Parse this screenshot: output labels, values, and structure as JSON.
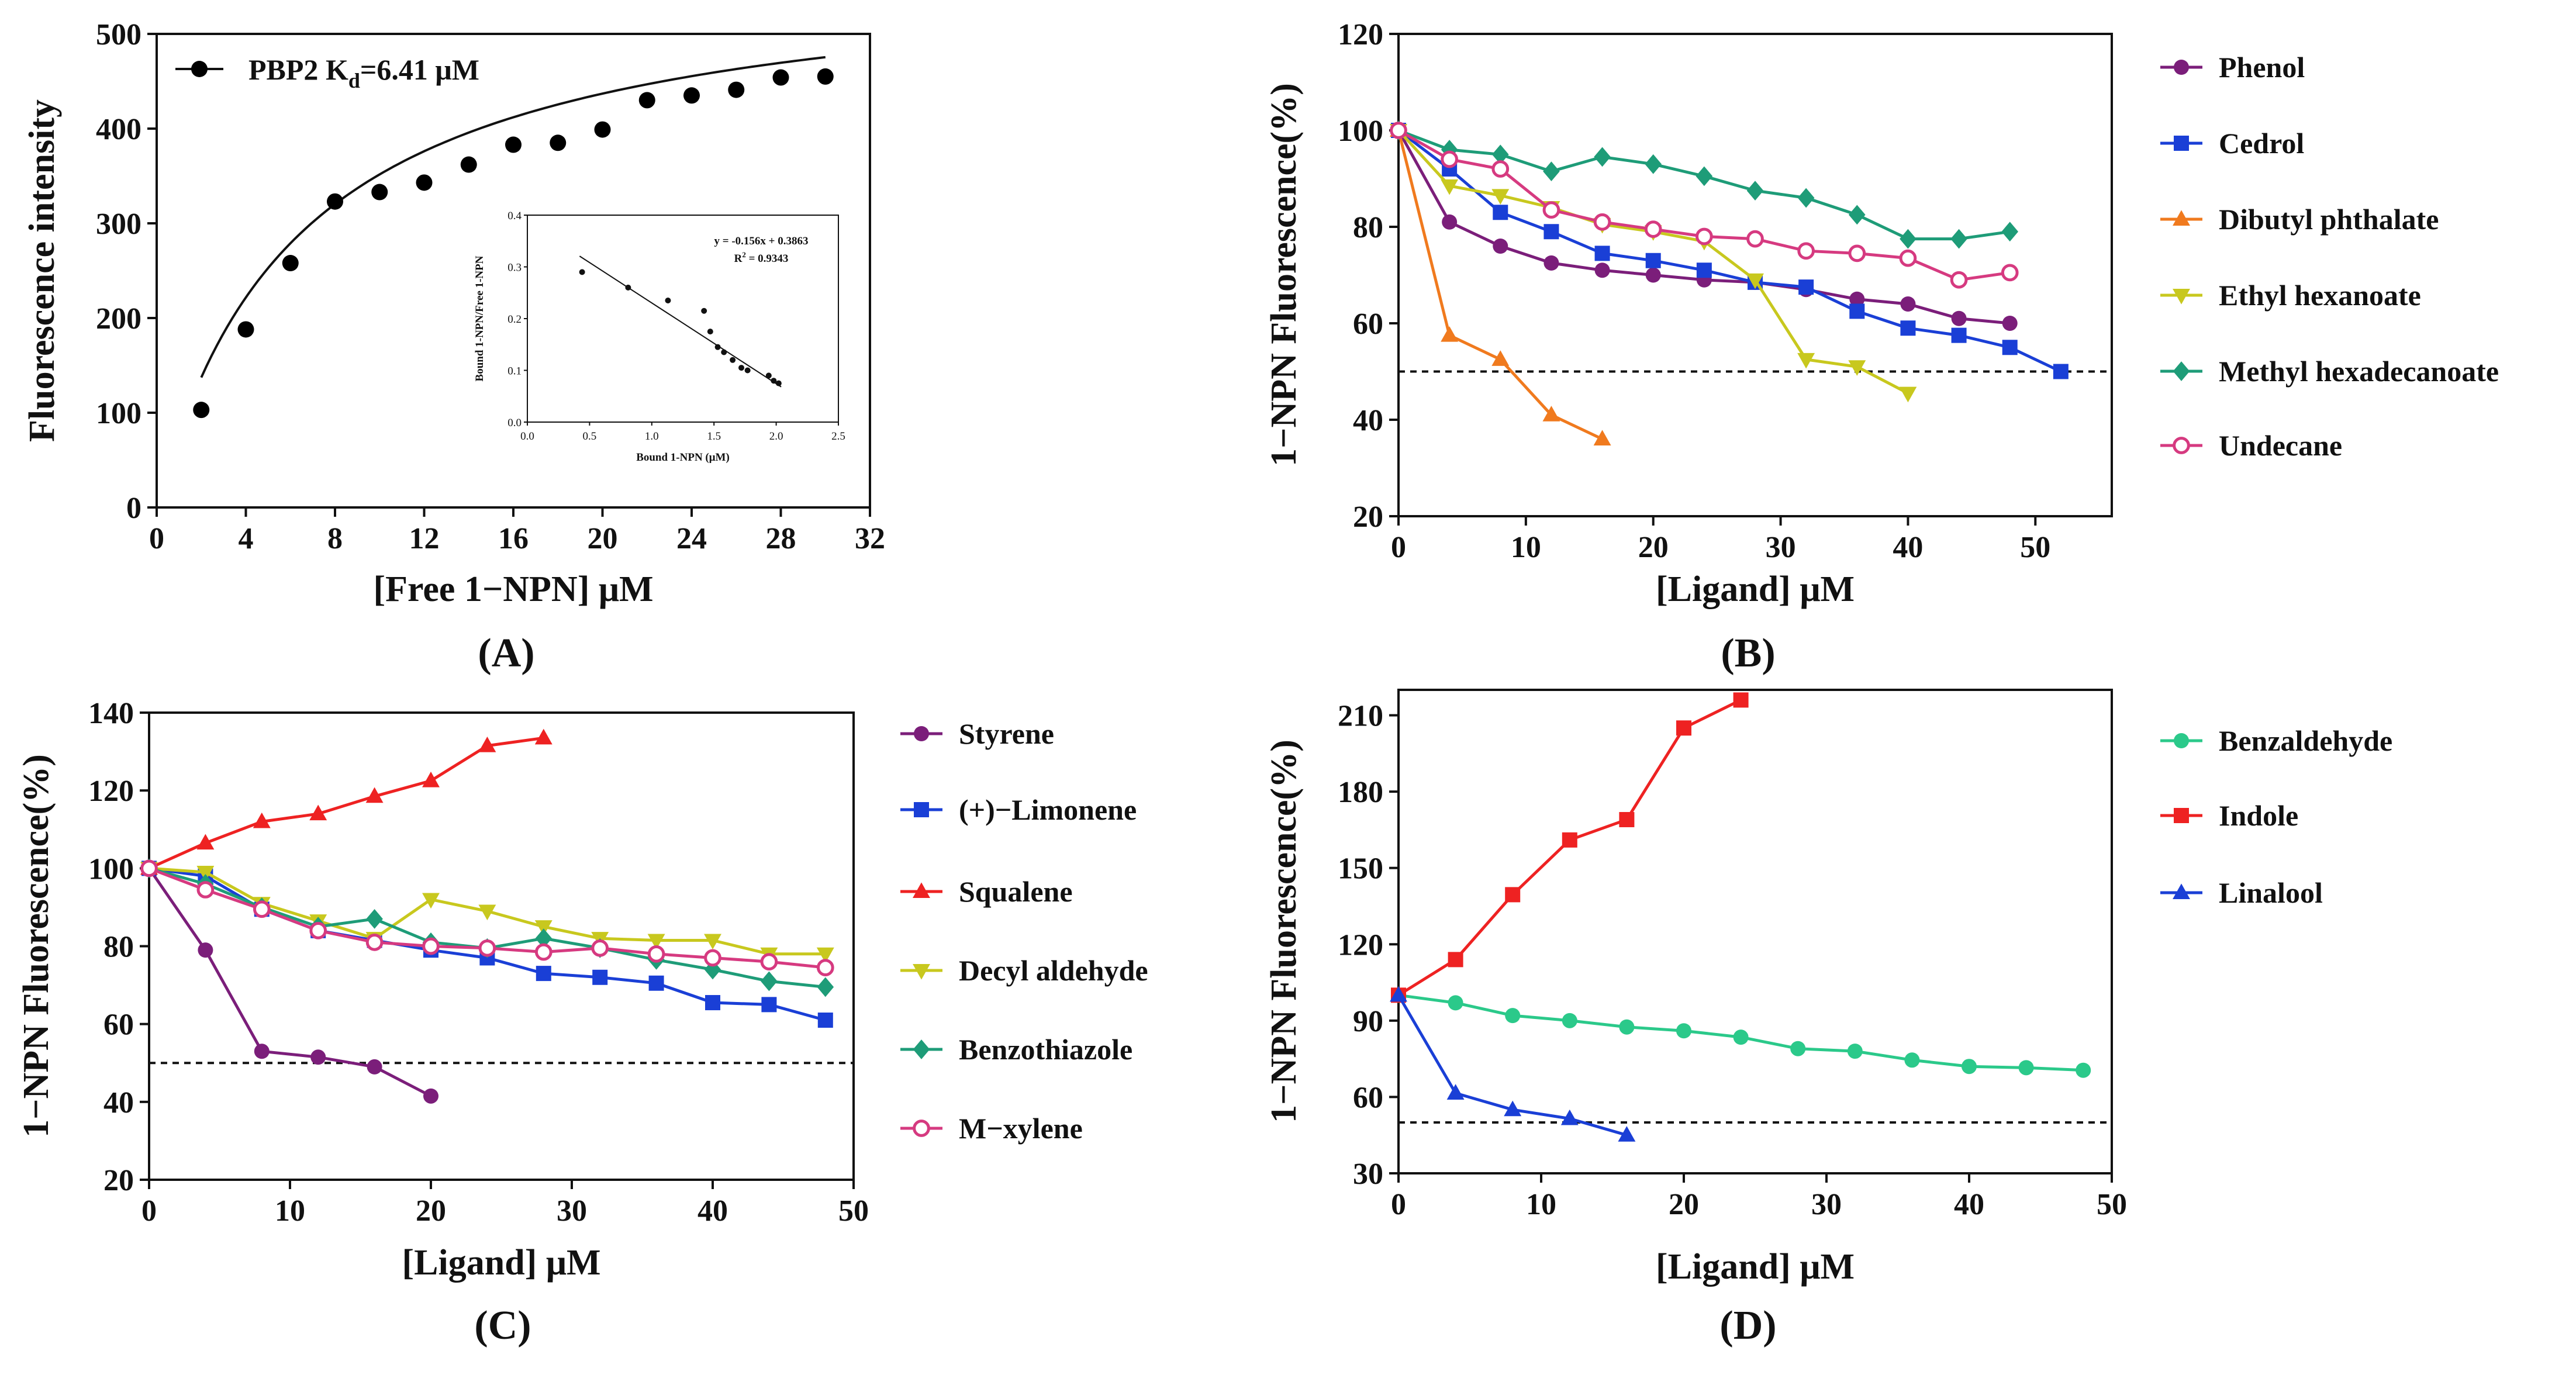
{
  "chart_data": [
    {
      "type": "scatter",
      "panel": "(A)",
      "xlabel": "[Free 1−NPN] μM",
      "ylabel": "Fluorescence intensity",
      "xlim": [
        0,
        32
      ],
      "ylim": [
        0,
        500
      ],
      "xticks": [
        0,
        4,
        8,
        12,
        16,
        20,
        24,
        28,
        32
      ],
      "yticks": [
        0,
        100,
        200,
        300,
        400,
        500
      ],
      "legend": {
        "series_name": "PBP2",
        "kd_prefix": "K",
        "kd_sub": "d",
        "kd_value": "=6.41 μM"
      },
      "series": [
        {
          "name": "PBP2",
          "color": "#000000",
          "x": [
            2,
            4,
            6,
            8,
            10,
            12,
            14,
            16,
            18,
            20,
            22,
            24,
            26,
            28,
            30
          ],
          "y": [
            103,
            188,
            258,
            323,
            333,
            343,
            362,
            383,
            385,
            399,
            430,
            435,
            441,
            454,
            455
          ]
        }
      ],
      "fit": {
        "type": "saturation",
        "bmax": 577,
        "kd": 6.41
      },
      "inset": {
        "xlabel": "Bound 1-NPN (μM)",
        "ylabel": "Bound 1-NPN/Free 1-NPN",
        "xlim": [
          0,
          2.5
        ],
        "ylim": [
          0,
          0.4
        ],
        "xticks": [
          "0.0",
          "0.5",
          "1.0",
          "1.5",
          "2.0",
          "2.5"
        ],
        "yticks": [
          "0.0",
          "0.1",
          "0.2",
          "0.3",
          "0.4"
        ],
        "equation": "y = -0.156x + 0.3863",
        "r2_label": "R",
        "r2_sup": "2",
        "r2_value": " = 0.9343",
        "slope": -0.156,
        "intercept": 0.3863,
        "x": [
          0.44,
          0.81,
          1.13,
          1.42,
          1.47,
          1.53,
          1.58,
          1.65,
          1.72,
          1.77,
          1.94,
          1.98,
          2.02
        ],
        "y": [
          0.29,
          0.26,
          0.235,
          0.215,
          0.175,
          0.145,
          0.135,
          0.12,
          0.105,
          0.1,
          0.09,
          0.08,
          0.075
        ]
      }
    },
    {
      "type": "line",
      "panel": "(B)",
      "xlabel": "[Ligand] μM",
      "ylabel": "1−NPN Fluorescence(%)",
      "xlim": [
        0,
        56
      ],
      "ylim": [
        20,
        120
      ],
      "xticks": [
        0,
        10,
        20,
        30,
        40,
        50
      ],
      "yticks": [
        20,
        40,
        60,
        80,
        100,
        120
      ],
      "threshold": 50,
      "series": [
        {
          "name": "Phenol",
          "color": "#7B1E7A",
          "marker": "circle",
          "x": [
            0,
            4,
            8,
            12,
            16,
            20,
            24,
            28,
            32,
            36,
            40,
            44,
            48
          ],
          "y": [
            100,
            81,
            76,
            72.5,
            71,
            70,
            69,
            68.5,
            67,
            65,
            64,
            61,
            60
          ]
        },
        {
          "name": "Cedrol",
          "color": "#1a3fd6",
          "marker": "square",
          "x": [
            0,
            4,
            8,
            12,
            16,
            20,
            24,
            28,
            32,
            36,
            40,
            44,
            48,
            52
          ],
          "y": [
            100,
            92,
            83,
            79,
            74.5,
            73,
            71,
            68.5,
            67.5,
            62.5,
            59,
            57.5,
            55,
            50
          ]
        },
        {
          "name": "Dibutyl phthalate",
          "color": "#F07A1E",
          "marker": "triangle",
          "x": [
            0,
            4,
            8,
            12,
            16
          ],
          "y": [
            100,
            57.5,
            52.5,
            41,
            36
          ]
        },
        {
          "name": "Ethyl hexanoate",
          "color": "#C8C81E",
          "marker": "tridown",
          "x": [
            0,
            4,
            8,
            12,
            16,
            20,
            24,
            28,
            32,
            36,
            40
          ],
          "y": [
            100,
            88.5,
            86.5,
            84,
            80.5,
            79,
            77,
            69,
            52.5,
            51,
            45.5
          ]
        },
        {
          "name": "Methyl hexadecanoate",
          "color": "#1E9C78",
          "marker": "diamond",
          "x": [
            0,
            4,
            8,
            12,
            16,
            20,
            24,
            28,
            32,
            36,
            40,
            44,
            48
          ],
          "y": [
            100,
            96,
            95,
            91.5,
            94.5,
            93,
            90.5,
            87.5,
            86,
            82.5,
            77.5,
            77.5,
            79
          ]
        },
        {
          "name": "Undecane",
          "color": "#D63A80",
          "marker": "circle-open",
          "x": [
            0,
            4,
            8,
            12,
            16,
            20,
            24,
            28,
            32,
            36,
            40,
            44,
            48
          ],
          "y": [
            100,
            94,
            92,
            83.5,
            81,
            79.5,
            78,
            77.5,
            75,
            74.5,
            73.5,
            69,
            70.5
          ]
        }
      ]
    },
    {
      "type": "line",
      "panel": "(C)",
      "xlabel": "[Ligand] μM",
      "ylabel": "1−NPN Fluorescence(%)",
      "xlim": [
        0,
        50
      ],
      "ylim": [
        20,
        140
      ],
      "xticks": [
        0,
        10,
        20,
        30,
        40,
        50
      ],
      "yticks": [
        20,
        40,
        60,
        80,
        100,
        120,
        140
      ],
      "threshold": 50,
      "series": [
        {
          "name": "Styrene",
          "color": "#7B1E7A",
          "marker": "circle",
          "x": [
            0,
            4,
            8,
            12,
            16,
            20
          ],
          "y": [
            100,
            79,
            53,
            51.5,
            49,
            41.5
          ]
        },
        {
          "name": "(+)−Limonene",
          "color": "#1a3fd6",
          "marker": "square",
          "x": [
            0,
            4,
            8,
            12,
            16,
            20,
            24,
            28,
            32,
            36,
            40,
            44,
            48
          ],
          "y": [
            100,
            98,
            89.5,
            84,
            81.5,
            79,
            77,
            73,
            72,
            70.5,
            65.5,
            65,
            61
          ]
        },
        {
          "name": "Squalene",
          "color": "#EE2222",
          "marker": "triangle",
          "x": [
            0,
            4,
            8,
            12,
            16,
            20,
            24,
            28
          ],
          "y": [
            100,
            106.5,
            112,
            114,
            118.5,
            122.5,
            131.5,
            133.5
          ]
        },
        {
          "name": "Decyl aldehyde",
          "color": "#C8C81E",
          "marker": "tridown",
          "x": [
            0,
            4,
            8,
            12,
            16,
            20,
            24,
            28,
            32,
            36,
            40,
            44,
            48
          ],
          "y": [
            100,
            99,
            91,
            86.5,
            82,
            92,
            89,
            85,
            82,
            81.5,
            81.5,
            78,
            78
          ]
        },
        {
          "name": "Benzothiazole",
          "color": "#1E9C78",
          "marker": "diamond",
          "x": [
            0,
            4,
            8,
            12,
            16,
            20,
            24,
            28,
            32,
            36,
            40,
            44,
            48
          ],
          "y": [
            100,
            96,
            90,
            85,
            87,
            81,
            79.5,
            82,
            79.5,
            76.5,
            74,
            71,
            69.5
          ]
        },
        {
          "name": "M−xylene",
          "color": "#D63A80",
          "marker": "circle-open",
          "x": [
            0,
            4,
            8,
            12,
            16,
            20,
            24,
            28,
            32,
            36,
            40,
            44,
            48
          ],
          "y": [
            100,
            94.5,
            89.5,
            84,
            81,
            80,
            79.5,
            78.5,
            79.5,
            78,
            77,
            76,
            74.5
          ]
        }
      ]
    },
    {
      "type": "line",
      "panel": "(D)",
      "xlabel": "[Ligand] μM",
      "ylabel": "1−NPN Fluorescence(%)",
      "xlim": [
        0,
        50
      ],
      "ylim": [
        30,
        220
      ],
      "xticks": [
        0,
        10,
        20,
        30,
        40,
        50
      ],
      "yticks": [
        30,
        60,
        90,
        120,
        150,
        180,
        210
      ],
      "threshold": 50,
      "series": [
        {
          "name": "Benzaldehyde",
          "color": "#2BC98A",
          "marker": "circle",
          "x": [
            0,
            4,
            8,
            12,
            16,
            20,
            24,
            28,
            32,
            36,
            40,
            44,
            48
          ],
          "y": [
            100,
            97,
            92,
            90,
            87.5,
            86,
            83.5,
            79,
            78,
            74.5,
            72,
            71.5,
            70.5
          ]
        },
        {
          "name": "Indole",
          "color": "#EE2222",
          "marker": "square",
          "x": [
            0,
            4,
            8,
            12,
            16,
            20,
            24
          ],
          "y": [
            100,
            114,
            139.5,
            161,
            169,
            205,
            216
          ]
        },
        {
          "name": "Linalool",
          "color": "#1a3fd6",
          "marker": "triangle",
          "x": [
            0,
            4,
            8,
            12,
            16
          ],
          "y": [
            100,
            61.5,
            55,
            51.5,
            45
          ]
        }
      ]
    }
  ]
}
